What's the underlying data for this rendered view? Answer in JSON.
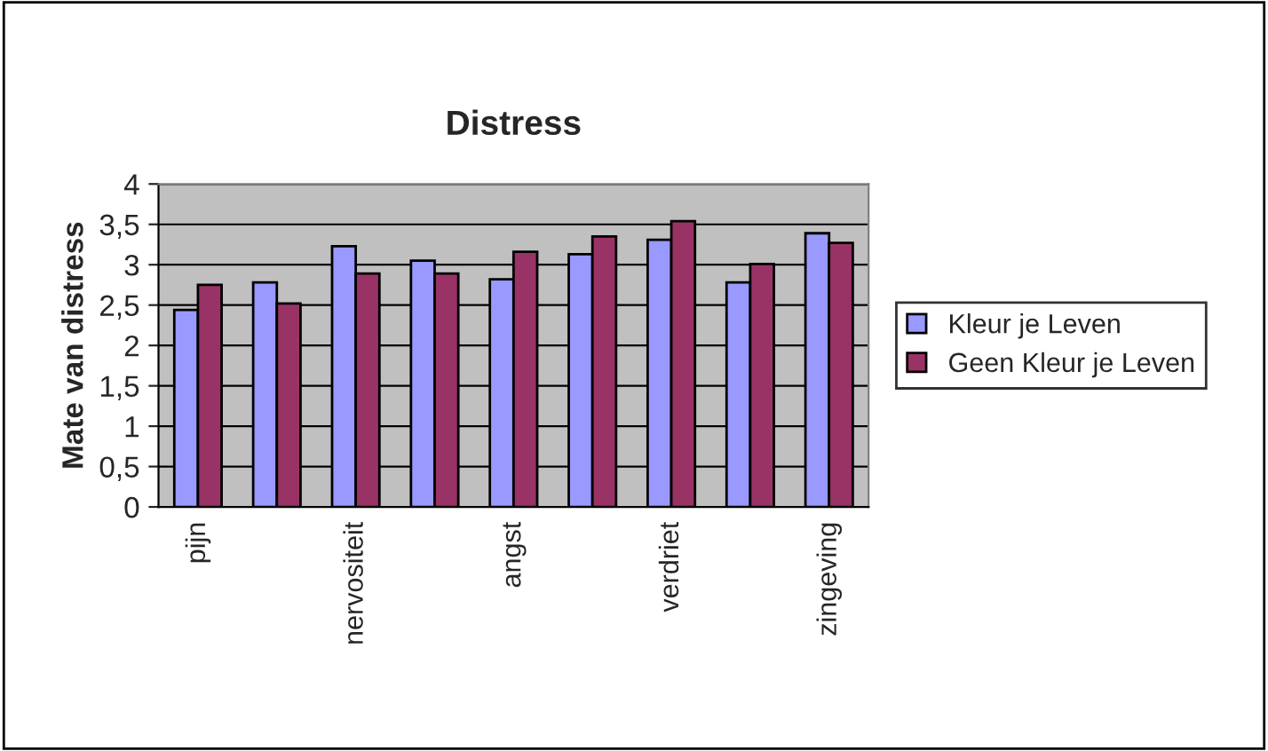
{
  "chart_data": {
    "type": "bar",
    "title": "Distress",
    "ylabel": "Mate van distress",
    "categories": [
      "pijn",
      null,
      "nervositeit",
      null,
      "angst",
      null,
      "verdriet",
      null,
      "zingeving"
    ],
    "series": [
      {
        "name": "Kleur je Leven",
        "color": "#9999ff",
        "values": [
          2.44,
          2.78,
          3.23,
          3.05,
          2.82,
          3.13,
          3.31,
          2.78,
          3.39
        ]
      },
      {
        "name": "Geen Kleur je Leven",
        "color": "#993366",
        "values": [
          2.75,
          2.52,
          2.89,
          2.89,
          3.16,
          3.35,
          3.54,
          3.01,
          3.27
        ]
      }
    ],
    "ylim": [
      0,
      4
    ],
    "yticks": [
      0,
      {
        "value": 0.5,
        "label": "0,5"
      },
      1,
      {
        "value": 1.5,
        "label": "1,5"
      },
      2,
      {
        "value": 2.5,
        "label": "2,5"
      },
      3,
      {
        "value": 3.5,
        "label": "3,5"
      },
      4
    ],
    "grid": "y",
    "legend": "right"
  }
}
